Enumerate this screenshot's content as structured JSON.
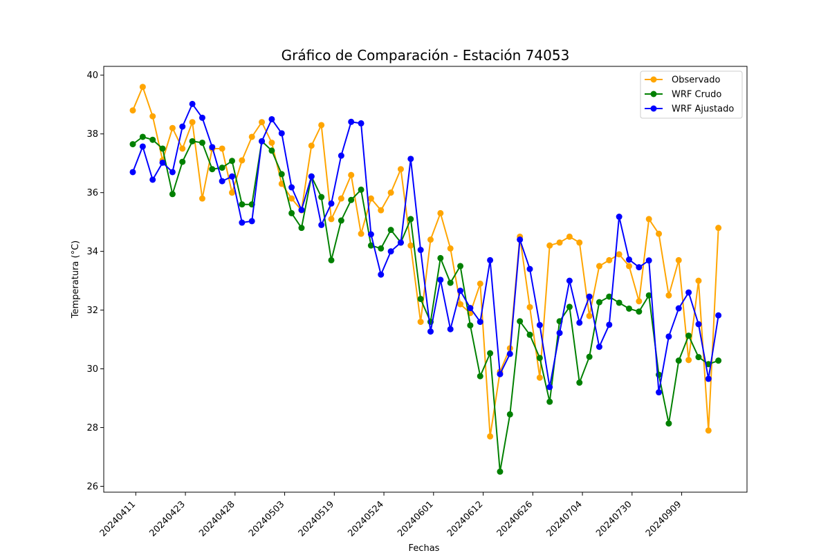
{
  "chart_data": {
    "type": "line",
    "title": "Gráfico de Comparación - Estación 74053",
    "xlabel": "Fechas",
    "ylabel": "Temperatura (°C)",
    "ylim": [
      25.8,
      40.3
    ],
    "yticks": [
      "26",
      "28",
      "30",
      "32",
      "34",
      "36",
      "38",
      "40"
    ],
    "xticks": [
      {
        "index": 0.3,
        "label": "20240411"
      },
      {
        "index": 5.3,
        "label": "20240423"
      },
      {
        "index": 10.3,
        "label": "20240428"
      },
      {
        "index": 15.3,
        "label": "20240503"
      },
      {
        "index": 20.3,
        "label": "20240519"
      },
      {
        "index": 25.3,
        "label": "20240524"
      },
      {
        "index": 30.3,
        "label": "20240601"
      },
      {
        "index": 35.3,
        "label": "20240612"
      },
      {
        "index": 40.3,
        "label": "20240626"
      },
      {
        "index": 45.3,
        "label": "20240704"
      },
      {
        "index": 50.3,
        "label": "20240730"
      },
      {
        "index": 55.3,
        "label": "20240909"
      }
    ],
    "legend_position": "top-right",
    "grid": false,
    "series": [
      {
        "name": "Observado",
        "color": "#ffa500",
        "values": [
          38.8,
          39.6,
          38.6,
          37.1,
          38.2,
          37.5,
          38.4,
          35.8,
          37.5,
          37.5,
          36.0,
          37.1,
          37.9,
          38.4,
          37.7,
          36.3,
          35.8,
          35.4,
          37.6,
          38.3,
          35.1,
          35.8,
          36.6,
          34.6,
          35.8,
          35.4,
          36.0,
          36.8,
          34.2,
          31.6,
          34.4,
          35.3,
          34.1,
          32.2,
          31.9,
          32.9,
          27.7,
          29.9,
          30.7,
          34.5,
          32.1,
          29.7,
          34.2,
          34.3,
          34.5,
          34.3,
          31.8,
          33.5,
          33.7,
          33.9,
          33.5,
          32.3,
          35.1,
          34.6,
          32.5,
          33.7,
          30.3,
          33.0,
          27.9,
          34.8
        ]
      },
      {
        "name": "WRF Crudo",
        "color": "#008000",
        "values": [
          37.65,
          37.9,
          37.8,
          37.5,
          35.95,
          37.05,
          37.75,
          37.7,
          36.8,
          36.85,
          37.08,
          35.6,
          35.6,
          37.75,
          37.43,
          36.63,
          35.3,
          34.8,
          36.55,
          35.85,
          33.7,
          35.05,
          35.75,
          36.1,
          34.2,
          34.1,
          34.73,
          34.3,
          35.1,
          32.38,
          31.6,
          33.77,
          32.93,
          33.5,
          31.48,
          29.75,
          30.53,
          26.5,
          28.45,
          31.62,
          31.16,
          30.37,
          28.88,
          31.62,
          32.11,
          29.53,
          30.41,
          32.27,
          32.46,
          32.25,
          32.05,
          31.95,
          32.5,
          29.8,
          28.14,
          30.28,
          31.13,
          30.4,
          30.16,
          30.28
        ]
      },
      {
        "name": "WRF Ajustado",
        "color": "#0000ff",
        "values": [
          36.7,
          37.57,
          36.44,
          37.02,
          36.7,
          38.25,
          39.02,
          38.55,
          37.55,
          36.39,
          36.55,
          34.98,
          35.03,
          37.75,
          38.5,
          38.02,
          36.18,
          35.41,
          36.55,
          34.9,
          35.63,
          37.26,
          38.41,
          38.36,
          34.58,
          33.21,
          34.0,
          34.3,
          37.15,
          34.05,
          31.27,
          33.03,
          31.35,
          32.66,
          32.07,
          31.6,
          33.7,
          29.82,
          30.51,
          34.4,
          33.4,
          31.49,
          29.38,
          31.22,
          33.0,
          31.57,
          32.46,
          30.75,
          31.5,
          35.18,
          33.72,
          33.46,
          33.69,
          29.2,
          31.1,
          32.06,
          32.6,
          31.52,
          29.66,
          31.82
        ]
      }
    ]
  }
}
